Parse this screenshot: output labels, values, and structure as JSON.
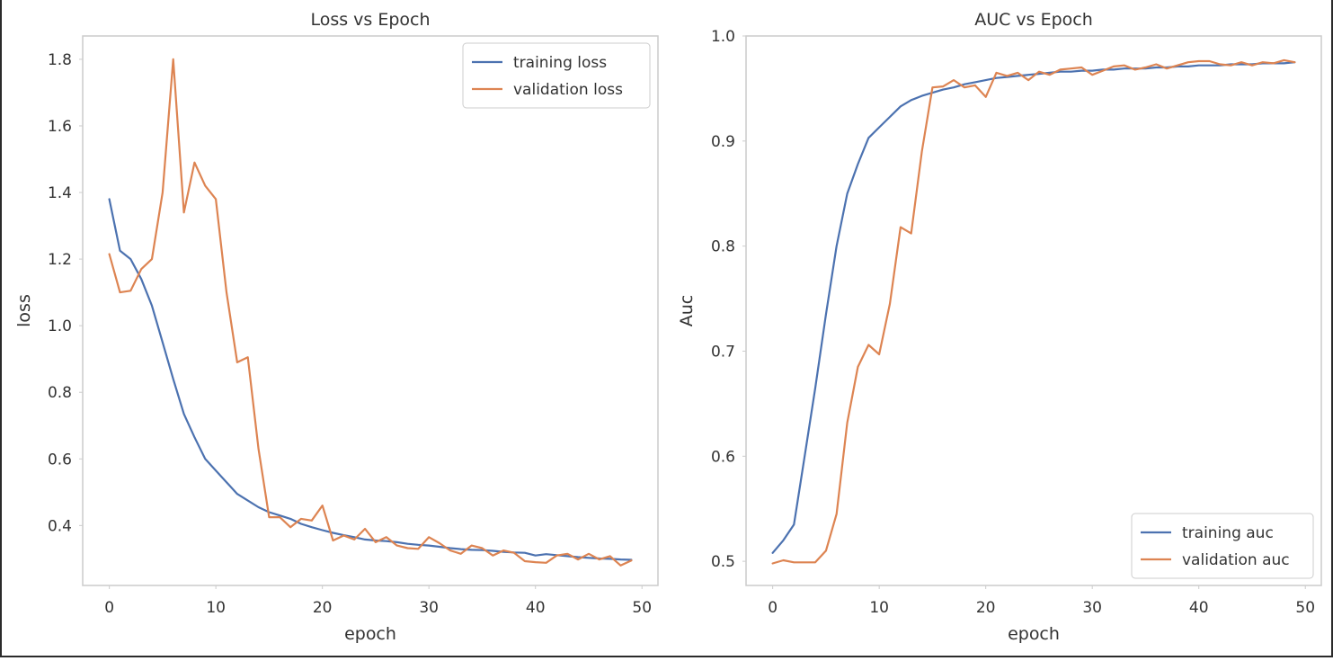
{
  "chart_data": [
    {
      "type": "line",
      "title": "Loss vs Epoch",
      "xlabel": "epoch",
      "ylabel": "loss",
      "xlim": [
        -2.5,
        51.5
      ],
      "ylim": [
        0.22,
        1.87
      ],
      "xticks": [
        0,
        10,
        20,
        30,
        40,
        50
      ],
      "yticks": [
        0.4,
        0.6,
        0.8,
        1.0,
        1.2,
        1.4,
        1.6,
        1.8
      ],
      "grid": false,
      "legend_position": "top-right",
      "series": [
        {
          "name": "training loss",
          "color": "#4c72b0",
          "x": [
            0,
            1,
            2,
            3,
            4,
            5,
            6,
            7,
            8,
            9,
            10,
            11,
            12,
            13,
            14,
            15,
            16,
            17,
            18,
            19,
            20,
            21,
            22,
            23,
            24,
            25,
            26,
            27,
            28,
            29,
            30,
            31,
            32,
            33,
            34,
            35,
            36,
            37,
            38,
            39,
            40,
            41,
            42,
            43,
            44,
            45,
            46,
            47,
            48,
            49
          ],
          "y": [
            1.38,
            1.225,
            1.2,
            1.14,
            1.06,
            0.95,
            0.84,
            0.735,
            0.665,
            0.6,
            0.565,
            0.53,
            0.495,
            0.475,
            0.455,
            0.44,
            0.43,
            0.42,
            0.405,
            0.395,
            0.386,
            0.378,
            0.371,
            0.365,
            0.358,
            0.355,
            0.353,
            0.35,
            0.345,
            0.342,
            0.34,
            0.336,
            0.332,
            0.329,
            0.327,
            0.326,
            0.324,
            0.321,
            0.319,
            0.318,
            0.31,
            0.314,
            0.311,
            0.308,
            0.305,
            0.303,
            0.301,
            0.3,
            0.298,
            0.297
          ]
        },
        {
          "name": "validation loss",
          "color": "#dd8452",
          "x": [
            0,
            1,
            2,
            3,
            4,
            5,
            6,
            7,
            8,
            9,
            10,
            11,
            12,
            13,
            14,
            15,
            16,
            17,
            18,
            19,
            20,
            21,
            22,
            23,
            24,
            25,
            26,
            27,
            28,
            29,
            30,
            31,
            32,
            33,
            34,
            35,
            36,
            37,
            38,
            39,
            40,
            41,
            42,
            43,
            44,
            45,
            46,
            47,
            48,
            49
          ],
          "y": [
            1.215,
            1.1,
            1.105,
            1.17,
            1.2,
            1.4,
            1.8,
            1.34,
            1.49,
            1.42,
            1.38,
            1.1,
            0.89,
            0.905,
            0.63,
            0.425,
            0.425,
            0.395,
            0.42,
            0.415,
            0.46,
            0.355,
            0.37,
            0.358,
            0.39,
            0.35,
            0.365,
            0.34,
            0.332,
            0.33,
            0.365,
            0.347,
            0.325,
            0.315,
            0.34,
            0.332,
            0.31,
            0.325,
            0.318,
            0.293,
            0.29,
            0.288,
            0.31,
            0.315,
            0.298,
            0.315,
            0.298,
            0.308,
            0.28,
            0.295
          ]
        }
      ]
    },
    {
      "type": "line",
      "title": "AUC vs Epoch",
      "xlabel": "epoch",
      "ylabel": "Auc",
      "xlim": [
        -2.5,
        51.5
      ],
      "ylim": [
        0.477,
        1.0
      ],
      "xticks": [
        0,
        10,
        20,
        30,
        40,
        50
      ],
      "yticks": [
        0.5,
        0.6,
        0.7,
        0.8,
        0.9,
        1.0
      ],
      "grid": false,
      "legend_position": "bottom-right",
      "series": [
        {
          "name": "training auc",
          "color": "#4c72b0",
          "x": [
            0,
            1,
            2,
            3,
            4,
            5,
            6,
            7,
            8,
            9,
            10,
            11,
            12,
            13,
            14,
            15,
            16,
            17,
            18,
            19,
            20,
            21,
            22,
            23,
            24,
            25,
            26,
            27,
            28,
            29,
            30,
            31,
            32,
            33,
            34,
            35,
            36,
            37,
            38,
            39,
            40,
            41,
            42,
            43,
            44,
            45,
            46,
            47,
            48,
            49
          ],
          "y": [
            0.508,
            0.52,
            0.535,
            0.6,
            0.665,
            0.735,
            0.8,
            0.85,
            0.878,
            0.903,
            0.913,
            0.923,
            0.933,
            0.939,
            0.943,
            0.946,
            0.949,
            0.951,
            0.954,
            0.956,
            0.958,
            0.96,
            0.961,
            0.962,
            0.963,
            0.964,
            0.965,
            0.966,
            0.966,
            0.967,
            0.967,
            0.968,
            0.968,
            0.969,
            0.969,
            0.969,
            0.97,
            0.97,
            0.971,
            0.971,
            0.972,
            0.972,
            0.972,
            0.973,
            0.973,
            0.973,
            0.974,
            0.974,
            0.974,
            0.975
          ]
        },
        {
          "name": "validation auc",
          "color": "#dd8452",
          "x": [
            0,
            1,
            2,
            3,
            4,
            5,
            6,
            7,
            8,
            9,
            10,
            11,
            12,
            13,
            14,
            15,
            16,
            17,
            18,
            19,
            20,
            21,
            22,
            23,
            24,
            25,
            26,
            27,
            28,
            29,
            30,
            31,
            32,
            33,
            34,
            35,
            36,
            37,
            38,
            39,
            40,
            41,
            42,
            43,
            44,
            45,
            46,
            47,
            48,
            49
          ],
          "y": [
            0.498,
            0.501,
            0.499,
            0.499,
            0.499,
            0.51,
            0.545,
            0.632,
            0.685,
            0.706,
            0.697,
            0.745,
            0.818,
            0.812,
            0.89,
            0.951,
            0.952,
            0.958,
            0.951,
            0.953,
            0.942,
            0.965,
            0.962,
            0.965,
            0.958,
            0.966,
            0.963,
            0.968,
            0.969,
            0.97,
            0.963,
            0.967,
            0.971,
            0.972,
            0.968,
            0.97,
            0.973,
            0.969,
            0.972,
            0.975,
            0.976,
            0.976,
            0.973,
            0.972,
            0.975,
            0.972,
            0.975,
            0.974,
            0.977,
            0.975
          ]
        }
      ]
    }
  ]
}
